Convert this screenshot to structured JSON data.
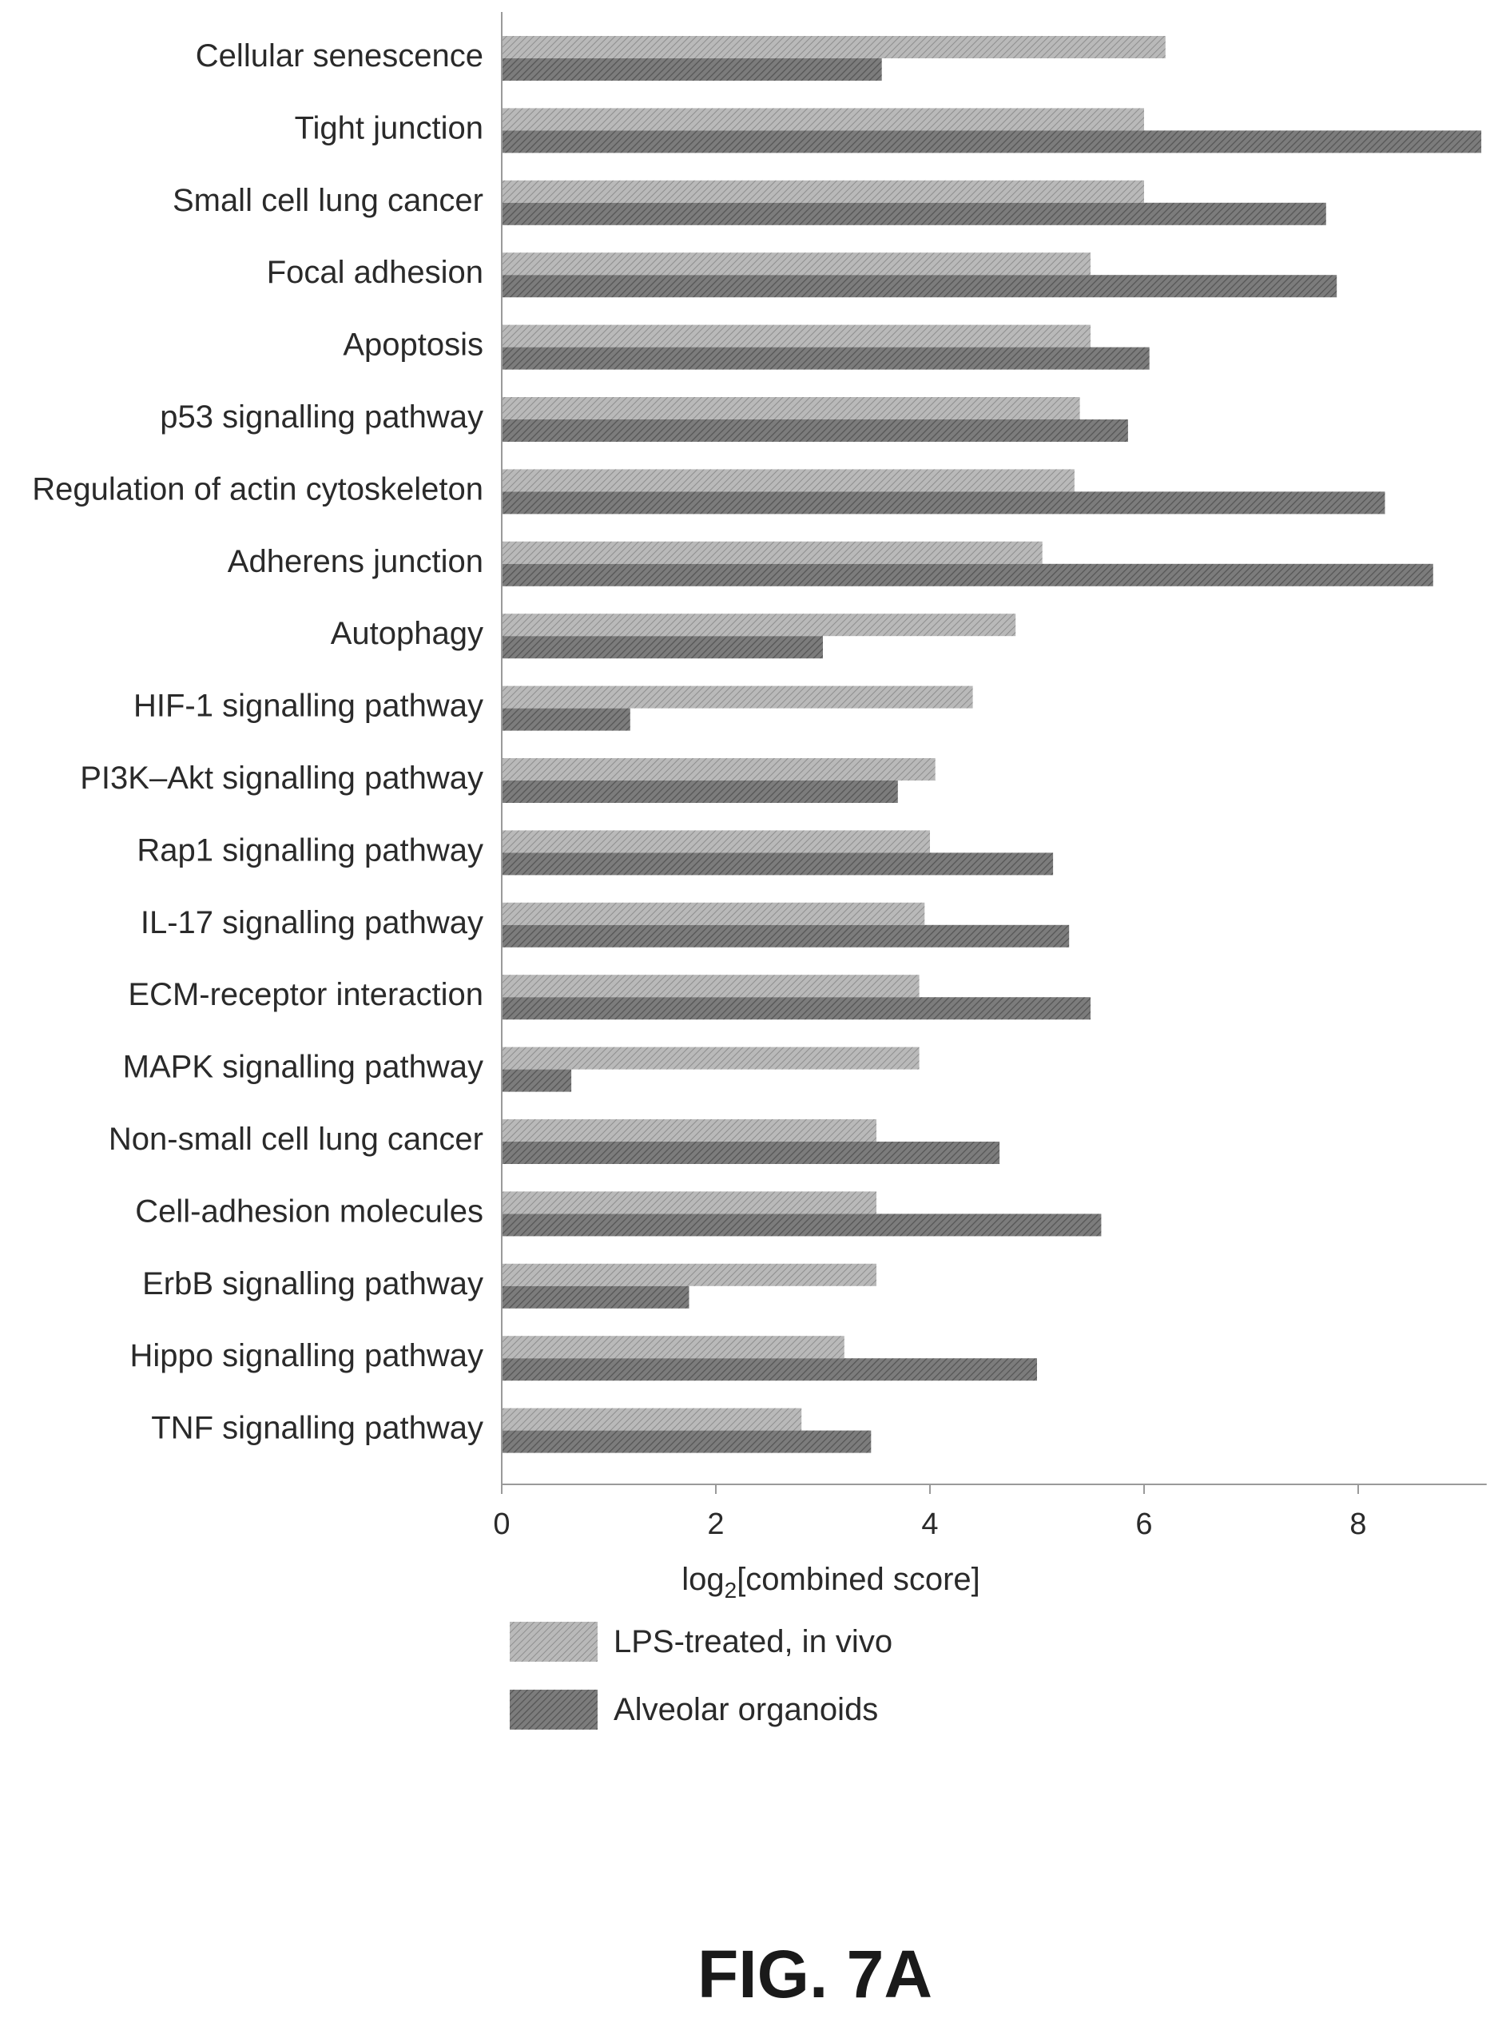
{
  "chart_data": {
    "type": "bar",
    "orientation": "horizontal",
    "categories": [
      "Cellular senescence",
      "Tight junction",
      "Small cell lung cancer",
      "Focal adhesion",
      "Apoptosis",
      "p53 signalling pathway",
      "Regulation of actin cytoskeleton",
      "Adherens junction",
      "Autophagy",
      "HIF-1 signalling pathway",
      "PI3K–Akt signalling pathway",
      "Rap1 signalling pathway",
      "IL-17 signalling pathway",
      "ECM-receptor interaction",
      "MAPK signalling pathway",
      "Non-small cell lung cancer",
      "Cell-adhesion molecules",
      "ErbB signalling pathway",
      "Hippo signalling pathway",
      "TNF signalling pathway"
    ],
    "series": [
      {
        "name": "LPS-treated, in vivo",
        "color": "#a8a8a8",
        "values": [
          6.2,
          6.0,
          6.0,
          5.5,
          5.5,
          5.4,
          5.35,
          5.05,
          4.8,
          4.4,
          4.05,
          4.0,
          3.95,
          3.9,
          3.9,
          3.5,
          3.5,
          3.5,
          3.2,
          2.8
        ]
      },
      {
        "name": "Alveolar organoids",
        "color": "#707070",
        "values": [
          3.55,
          9.15,
          7.7,
          7.8,
          6.05,
          5.85,
          8.25,
          8.7,
          3.0,
          1.2,
          3.7,
          5.15,
          5.3,
          5.5,
          0.65,
          4.65,
          5.6,
          1.75,
          5.0,
          3.45
        ]
      }
    ],
    "xlabel_main": "log",
    "xlabel_sub": "2",
    "xlabel_rest": "[combined score]",
    "xlim": [
      0,
      9.2
    ],
    "xticks": [
      "0",
      "2",
      "4",
      "6",
      "8"
    ],
    "legend_position": "bottom",
    "grid": false
  },
  "figure_label": "FIG. 7A"
}
